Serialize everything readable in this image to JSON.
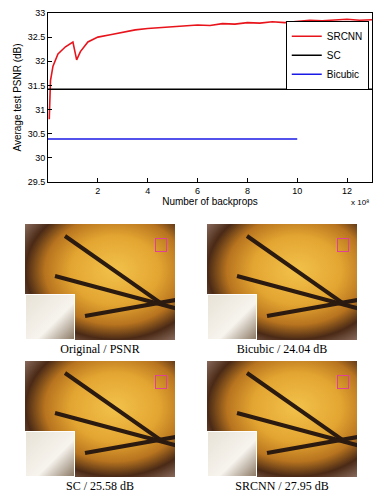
{
  "chart_data": {
    "type": "line",
    "y_label": "Average test PSNR (dB)",
    "x_label": "Number of backprops",
    "annotations": [
      "x 10⁸"
    ],
    "xlim": [
      0,
      13
    ],
    "xticks": [
      2,
      4,
      6,
      8,
      10,
      12
    ],
    "ylim": [
      29.5,
      33
    ],
    "yticks": [
      29.5,
      30,
      30.5,
      31,
      31.5,
      32,
      32.5,
      33
    ],
    "grid": false,
    "legend": "right",
    "series": [
      {
        "name": "SRCNN",
        "color": "#e8141c",
        "x": [
          0.05,
          0.1,
          0.2,
          0.4,
          0.7,
          1.0,
          1.15,
          1.3,
          1.6,
          2.0,
          2.5,
          3.0,
          3.5,
          4.0,
          4.5,
          5.0,
          5.5,
          6.0,
          6.5,
          7.0,
          7.5,
          8.0,
          8.5,
          9.0,
          9.5,
          10.0,
          10.5,
          11.0,
          11.5,
          12.0,
          12.5,
          13.0
        ],
        "values": [
          30.8,
          31.6,
          31.9,
          32.15,
          32.3,
          32.4,
          32.03,
          32.2,
          32.4,
          32.5,
          32.55,
          32.6,
          32.65,
          32.68,
          32.7,
          32.72,
          32.74,
          32.75,
          32.74,
          32.78,
          32.77,
          32.8,
          32.79,
          32.82,
          32.8,
          32.83,
          32.85,
          32.84,
          32.86,
          32.87,
          32.85,
          32.86
        ]
      },
      {
        "name": "SC",
        "color": "#000000",
        "x": [
          0,
          13
        ],
        "values": [
          31.42,
          31.42
        ]
      },
      {
        "name": "Bicubic",
        "color": "#1a1ae6",
        "x": [
          0,
          10
        ],
        "values": [
          30.39,
          30.39
        ]
      }
    ]
  },
  "panels": [
    {
      "caption": "Original / PSNR"
    },
    {
      "caption": "Bicubic / 24.04 dB"
    },
    {
      "caption": "SC / 25.58 dB"
    },
    {
      "caption": "SRCNN / 27.95 dB"
    }
  ]
}
